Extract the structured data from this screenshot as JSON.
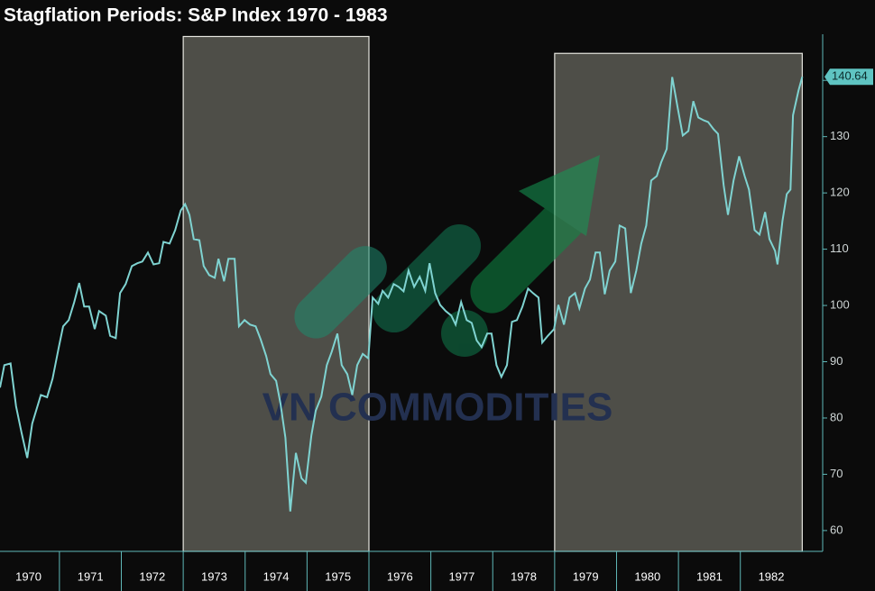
{
  "chart_data": {
    "type": "line",
    "title": "Stagflation Periods: S&P Index 1970 - 1983",
    "watermark": "VN COMMODITIES",
    "color": "#7fd3d1",
    "xlim": [
      1970.04,
      1983.33
    ],
    "ylim": [
      56.3,
      148.2
    ],
    "yticks": [
      60,
      70,
      80,
      90,
      100,
      110,
      120,
      130,
      140
    ],
    "xticks": [
      {
        "value": 1970,
        "label": "1970"
      },
      {
        "value": 1971,
        "label": "1971"
      },
      {
        "value": 1972,
        "label": "1972"
      },
      {
        "value": 1973,
        "label": "1973"
      },
      {
        "value": 1974,
        "label": "1974"
      },
      {
        "value": 1975,
        "label": "1975"
      },
      {
        "value": 1976,
        "label": "1976"
      },
      {
        "value": 1977,
        "label": "1977"
      },
      {
        "value": 1978,
        "label": "1978"
      },
      {
        "value": 1979,
        "label": "1979"
      },
      {
        "value": 1980,
        "label": "1980"
      },
      {
        "value": 1981,
        "label": "1981"
      },
      {
        "value": 1982,
        "label": "1982"
      }
    ],
    "shaded_periods": [
      {
        "start": 1973,
        "end": 1976,
        "top": 147.8
      },
      {
        "start": 1979,
        "end": 1983,
        "top": 144.8
      }
    ],
    "x": [
      1970.04,
      1970.11,
      1970.21,
      1970.3,
      1970.39,
      1970.48,
      1970.56,
      1970.7,
      1970.8,
      1970.89,
      1970.99,
      1971.06,
      1971.15,
      1971.24,
      1971.32,
      1971.4,
      1971.48,
      1971.57,
      1971.64,
      1971.75,
      1971.82,
      1971.91,
      1971.98,
      1972.07,
      1972.17,
      1972.26,
      1972.34,
      1972.43,
      1972.52,
      1972.61,
      1972.68,
      1972.78,
      1972.87,
      1972.96,
      1973.03,
      1973.1,
      1973.17,
      1973.26,
      1973.33,
      1973.42,
      1973.51,
      1973.57,
      1973.66,
      1973.73,
      1973.83,
      1973.9,
      1973.99,
      1974.08,
      1974.17,
      1974.25,
      1974.34,
      1974.41,
      1974.5,
      1974.57,
      1974.65,
      1974.73,
      1974.82,
      1974.91,
      1974.98,
      1975.07,
      1975.14,
      1975.23,
      1975.32,
      1975.4,
      1975.49,
      1975.56,
      1975.65,
      1975.73,
      1975.81,
      1975.9,
      1975.99,
      1976.06,
      1976.15,
      1976.22,
      1976.31,
      1976.4,
      1976.48,
      1976.56,
      1976.64,
      1976.73,
      1976.82,
      1976.91,
      1976.98,
      1977.07,
      1977.15,
      1977.24,
      1977.33,
      1977.4,
      1977.49,
      1977.58,
      1977.66,
      1977.74,
      1977.82,
      1977.91,
      1977.98,
      1978.06,
      1978.14,
      1978.23,
      1978.31,
      1978.39,
      1978.48,
      1978.57,
      1978.65,
      1978.74,
      1978.8,
      1978.89,
      1978.99,
      1979.06,
      1979.15,
      1979.24,
      1979.33,
      1979.4,
      1979.49,
      1979.57,
      1979.66,
      1979.73,
      1979.81,
      1979.89,
      1979.98,
      1980.05,
      1980.14,
      1980.23,
      1980.32,
      1980.4,
      1980.48,
      1980.56,
      1980.65,
      1980.72,
      1980.81,
      1980.9,
      1980.99,
      1981.07,
      1981.16,
      1981.24,
      1981.32,
      1981.41,
      1981.48,
      1981.57,
      1981.64,
      1981.73,
      1981.8,
      1981.89,
      1981.98,
      1982.07,
      1982.14,
      1982.23,
      1982.31,
      1982.4,
      1982.47,
      1982.56,
      1982.6,
      1982.68,
      1982.75,
      1982.81,
      1982.85,
      1982.94,
      1983.0
    ],
    "values": [
      85.4,
      89.4,
      89.7,
      82.1,
      77.3,
      72.9,
      79,
      84.1,
      83.7,
      87,
      92.6,
      96.3,
      97.4,
      100.6,
      104,
      99.8,
      99.8,
      95.8,
      99,
      98.2,
      94.6,
      94.2,
      102.2,
      103.8,
      107,
      107.5,
      107.8,
      109.4,
      107.3,
      107.5,
      111.3,
      111,
      113.4,
      116.9,
      118,
      116.1,
      111.8,
      111.6,
      107,
      105.4,
      104.9,
      108.3,
      104.3,
      108.3,
      108.3,
      96.3,
      97.4,
      96.6,
      96.3,
      94,
      91,
      87.8,
      86.6,
      82.6,
      76.5,
      63.4,
      73.8,
      69.3,
      68.5,
      76.9,
      81.3,
      83.8,
      89.4,
      91.8,
      95,
      89.4,
      87.8,
      84.1,
      89.4,
      91.4,
      90.6,
      101.4,
      100.3,
      102.6,
      101.4,
      103.8,
      103.3,
      102.5,
      106.2,
      103.3,
      105.1,
      102.6,
      107.5,
      102.2,
      100.1,
      99,
      98.2,
      96.6,
      100.6,
      97.4,
      96.9,
      93.8,
      92.6,
      95,
      95,
      89.4,
      87.3,
      89.4,
      97.1,
      97.4,
      99.8,
      103,
      102.2,
      101.4,
      93.4,
      94.6,
      95.8,
      100.1,
      96.6,
      101.4,
      102.2,
      99.5,
      103,
      104.6,
      109.4,
      109.4,
      102,
      106.2,
      107.8,
      114.2,
      113.7,
      102.2,
      106.2,
      111,
      114.2,
      122.2,
      123,
      125.4,
      127.8,
      140.6,
      135,
      130.2,
      131,
      136.3,
      133.4,
      132.9,
      132.6,
      131.3,
      130.5,
      121.4,
      116.1,
      122.2,
      126.5,
      123,
      120.6,
      113.4,
      112.6,
      116.6,
      111.8,
      109.7,
      107.3,
      115,
      119.8,
      120.6,
      133.8,
      138.2,
      140.64
    ]
  }
}
